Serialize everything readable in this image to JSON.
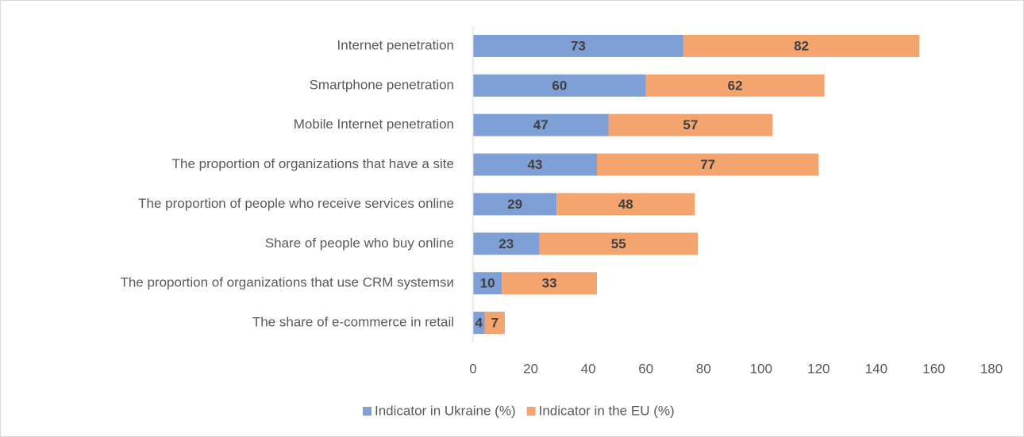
{
  "chart_data": {
    "type": "stacked_bar_horizontal",
    "categories": [
      "Internet penetration",
      "Smartphone penetration",
      "Mobile Internet penetration",
      "The proportion of organizations that have a site",
      "The proportion of people who receive services online",
      "Share of people who buy online",
      "The proportion of organizations that use CRM systemsи",
      "The share of e-commerce in retail"
    ],
    "series": [
      {
        "name": "Indicator in Ukraine (%)",
        "color": "#7f9fd7",
        "values": [
          73,
          60,
          47,
          43,
          29,
          23,
          10,
          4
        ]
      },
      {
        "name": "Indicator in the EU (%)",
        "color": "#f4a46e",
        "values": [
          82,
          62,
          57,
          77,
          48,
          55,
          33,
          7
        ]
      }
    ],
    "xlim": [
      0,
      180
    ],
    "xticks": [
      0,
      20,
      40,
      60,
      80,
      100,
      120,
      140,
      160,
      180
    ],
    "legend": "bottom",
    "grid": false
  }
}
